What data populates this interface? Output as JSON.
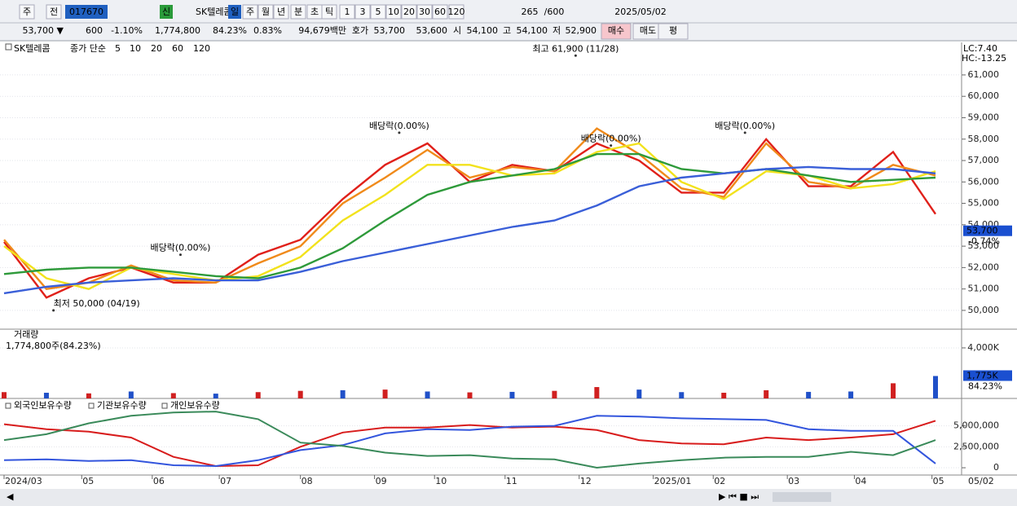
{
  "toolbar": {
    "row1": [
      "주",
      "전",
      "017670",
      "신",
      "SK텔레콤",
      "일",
      "주",
      "월",
      "년",
      "분",
      "초",
      "틱",
      "1",
      "3",
      "5",
      "10",
      "20",
      "30",
      "60",
      "120",
      "265",
      "/600",
      "2025/05/02"
    ],
    "row2": [
      "53,700 ▼",
      "600",
      "-1.10%",
      "1,774,800",
      "84.23%",
      "0.83%",
      "94,679백만",
      "호가",
      "53,700",
      "53,600",
      "시",
      "54,100",
      "고",
      "54,100",
      "저",
      "52,900",
      "매수",
      "매도",
      "평"
    ]
  },
  "chart_data": [
    {
      "type": "line",
      "name": "SK텔레콤",
      "legend_title": "종가 단순",
      "lc": "LC:7.40",
      "hc": "HC:-13.25",
      "x": [
        0,
        12,
        24,
        36,
        48,
        60,
        72,
        84,
        96,
        108,
        120,
        132,
        144,
        156,
        168,
        180,
        192,
        204,
        216,
        228,
        240,
        252,
        264
      ],
      "xlim": [
        0,
        264
      ],
      "ylim": [
        49160,
        62520
      ],
      "yticks": [
        {
          "value": 50000,
          "label": "50,000"
        },
        {
          "value": 51000,
          "label": "51,000"
        },
        {
          "value": 52000,
          "label": "52,000"
        },
        {
          "value": 53000,
          "label": "53,000"
        },
        {
          "value": 54000,
          "label": "54,000"
        },
        {
          "value": 55000,
          "label": "55,000"
        },
        {
          "value": 56000,
          "label": "56,000"
        },
        {
          "value": 57000,
          "label": "57,000"
        },
        {
          "value": 58000,
          "label": "58,000"
        },
        {
          "value": 59000,
          "label": "59,000"
        },
        {
          "value": 60000,
          "label": "60,000"
        },
        {
          "value": 61000,
          "label": "61,000"
        }
      ],
      "grid": true,
      "series": [
        {
          "name": "5",
          "color": "#e0201a",
          "values": [
            53200,
            50600,
            51500,
            52000,
            51300,
            51300,
            52600,
            53300,
            55200,
            56800,
            57800,
            56000,
            56800,
            56500,
            57800,
            57000,
            55500,
            55500,
            58000,
            55800,
            55800,
            57400,
            54500
          ]
        },
        {
          "name": "10",
          "color": "#f08a1a",
          "values": [
            53300,
            51000,
            51300,
            52100,
            51400,
            51300,
            52200,
            53000,
            55000,
            56200,
            57500,
            56200,
            56700,
            56500,
            58500,
            57300,
            55700,
            55300,
            57800,
            56000,
            55700,
            56800,
            56300
          ]
        },
        {
          "name": "20",
          "color": "#f2e21c",
          "values": [
            53000,
            51500,
            51000,
            52000,
            51700,
            51400,
            51600,
            52500,
            54200,
            55400,
            56800,
            56800,
            56300,
            56400,
            57400,
            57800,
            56000,
            55200,
            56500,
            56300,
            55700,
            55900,
            56500
          ]
        },
        {
          "name": "60",
          "color": "#2e9a3a",
          "values": [
            51700,
            51900,
            52000,
            52000,
            51800,
            51600,
            51500,
            52000,
            52900,
            54200,
            55400,
            56000,
            56300,
            56600,
            57300,
            57300,
            56600,
            56400,
            56600,
            56300,
            56000,
            56100,
            56200
          ]
        },
        {
          "name": "120",
          "color": "#3a5fd8",
          "values": [
            50800,
            51100,
            51300,
            51400,
            51500,
            51400,
            51400,
            51800,
            52300,
            52700,
            53100,
            53500,
            53900,
            54200,
            54900,
            55800,
            56200,
            56400,
            56600,
            56700,
            56600,
            56600,
            56400
          ]
        }
      ],
      "annotations": [
        {
          "label": "최고 61,900 (11/28)",
          "x": 162,
          "y": 61900
        },
        {
          "label": "최저 50,000 (04/19)",
          "x": 14,
          "y": 50000
        },
        {
          "label": "배당락(0.00%)",
          "x": 50,
          "y": 52600
        },
        {
          "label": "배당락(0.00%)",
          "x": 112,
          "y": 58300
        },
        {
          "label": "배당락(0.00%)",
          "x": 172,
          "y": 57700
        },
        {
          "label": "배당락(0.00%)",
          "x": 210,
          "y": 58300
        }
      ],
      "last_label": {
        "value": 53700,
        "label": "53,700"
      },
      "change_label": "-0.74%"
    },
    {
      "type": "bar",
      "title": "거래량",
      "subtitle": "1,774,800주(84.23%)",
      "x": [
        0,
        12,
        24,
        36,
        48,
        60,
        72,
        84,
        96,
        108,
        120,
        132,
        144,
        156,
        168,
        180,
        192,
        204,
        216,
        228,
        240,
        252,
        264
      ],
      "xlim": [
        0,
        264
      ],
      "ylim": [
        0,
        5480000
      ],
      "yticks": [
        {
          "value": 4000000,
          "label": "4,000K"
        }
      ],
      "values": [
        500000,
        450000,
        400000,
        550000,
        420000,
        380000,
        500000,
        600000,
        650000,
        700000,
        550000,
        480000,
        520000,
        600000,
        900000,
        700000,
        500000,
        450000,
        650000,
        520000,
        550000,
        1200000,
        1774800
      ],
      "colors": [
        "#d02020",
        "#2050c8",
        "#d02020",
        "#2050c8",
        "#d02020",
        "#2050c8",
        "#d02020",
        "#d02020",
        "#2050c8",
        "#d02020",
        "#2050c8",
        "#d02020",
        "#2050c8",
        "#d02020",
        "#d02020",
        "#2050c8",
        "#2050c8",
        "#d02020",
        "#d02020",
        "#2050c8",
        "#2050c8",
        "#d02020",
        "#2050c8"
      ],
      "last_label": {
        "value": 1774800,
        "label": "1,775K"
      },
      "ratio_label": "84.23%"
    },
    {
      "type": "line",
      "x": [
        0,
        12,
        24,
        36,
        48,
        60,
        72,
        84,
        96,
        108,
        120,
        132,
        144,
        156,
        168,
        180,
        192,
        204,
        216,
        228,
        240,
        252,
        264
      ],
      "xlim": [
        0,
        264
      ],
      "ylim": [
        -870000,
        8170000
      ],
      "yticks": [
        {
          "value": 0,
          "label": "0"
        },
        {
          "value": 2500000,
          "label": "2,500,000"
        },
        {
          "value": 5000000,
          "label": "5,000,000"
        }
      ],
      "xticks": [
        {
          "value": 0,
          "label": "2024/03"
        },
        {
          "value": 22,
          "label": "05"
        },
        {
          "value": 42,
          "label": "06"
        },
        {
          "value": 61,
          "label": "07"
        },
        {
          "value": 84,
          "label": "08"
        },
        {
          "value": 105,
          "label": "09"
        },
        {
          "value": 122,
          "label": "10"
        },
        {
          "value": 142,
          "label": "11"
        },
        {
          "value": 163,
          "label": "12"
        },
        {
          "value": 184,
          "label": "2025/01"
        },
        {
          "value": 201,
          "label": "02"
        },
        {
          "value": 222,
          "label": "03"
        },
        {
          "value": 241,
          "label": "04"
        },
        {
          "value": 263,
          "label": "05"
        }
      ],
      "x_end_label": "05/02",
      "series": [
        {
          "name": "외국인보유수량",
          "color": "#d81c1c",
          "values": [
            5200000,
            4600000,
            4300000,
            3600000,
            1300000,
            200000,
            300000,
            2500000,
            4200000,
            4800000,
            4800000,
            5100000,
            4800000,
            4900000,
            4500000,
            3300000,
            2900000,
            2800000,
            3600000,
            3300000,
            3600000,
            4000000,
            5600000
          ]
        },
        {
          "name": "기관보유수량",
          "color": "#3355dd",
          "values": [
            900000,
            1000000,
            800000,
            900000,
            300000,
            200000,
            900000,
            2100000,
            2700000,
            4100000,
            4600000,
            4500000,
            4900000,
            5000000,
            6200000,
            6100000,
            5900000,
            5800000,
            5700000,
            4600000,
            4400000,
            4400000,
            500000
          ]
        },
        {
          "name": "개인보유수량",
          "color": "#3a8a5a",
          "values": [
            3300000,
            4000000,
            5300000,
            6200000,
            6600000,
            6700000,
            5800000,
            3000000,
            2600000,
            1800000,
            1400000,
            1500000,
            1100000,
            1000000,
            0,
            500000,
            900000,
            1200000,
            1300000,
            1300000,
            1900000,
            1500000,
            3300000
          ]
        }
      ]
    }
  ]
}
